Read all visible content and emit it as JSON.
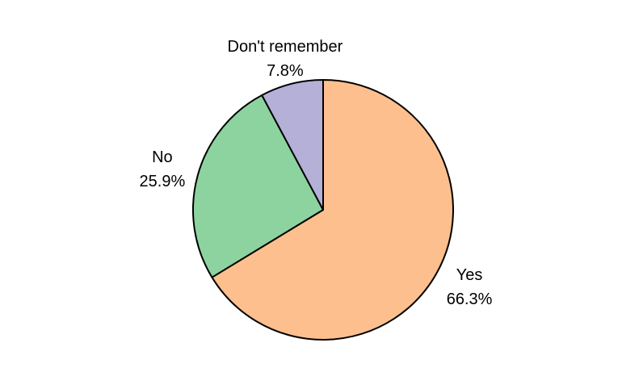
{
  "chart_data": {
    "type": "pie",
    "slices": [
      {
        "label": "Yes",
        "value": 66.3,
        "value_text": "66.3%",
        "color": "#FDBF8E"
      },
      {
        "label": "No",
        "value": 25.9,
        "value_text": "25.9%",
        "color": "#8DD3A0"
      },
      {
        "label": "Don't remember",
        "value": 7.8,
        "value_text": "7.8%",
        "color": "#B4B0D7"
      }
    ],
    "start_angle": "12 o'clock",
    "direction": "clockwise",
    "edge_color": "#000000"
  }
}
